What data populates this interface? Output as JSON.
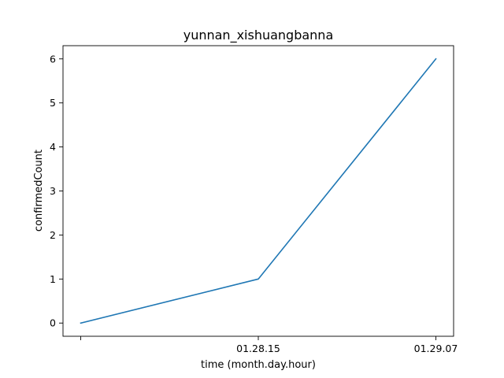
{
  "chart_data": {
    "type": "line",
    "title": "yunnan_xishuangbanna",
    "xlabel": "time (month.day.hour)",
    "ylabel": "confirmedCount",
    "x_tick_labels": [
      "",
      "01.28.15",
      "01.29.07"
    ],
    "y_tick_labels": [
      "0",
      "1",
      "2",
      "3",
      "4",
      "5",
      "6"
    ],
    "y_ticks": [
      0,
      1,
      2,
      3,
      4,
      5,
      6
    ],
    "ylim": [
      -0.3,
      6.3
    ],
    "series": [
      {
        "x": [
          "",
          "01.28.15",
          "01.29.07"
        ],
        "values": [
          0,
          1,
          6
        ]
      }
    ],
    "grid": false,
    "colors": {
      "line": "#1f77b4",
      "axes": "#000000"
    }
  }
}
